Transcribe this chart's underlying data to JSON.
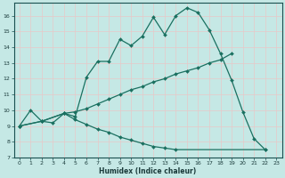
{
  "xlabel": "Humidex (Indice chaleur)",
  "background_color": "#c5e8e5",
  "grid_color": "#e8c8c8",
  "line_color": "#1a7060",
  "xlim": [
    -0.5,
    23.5
  ],
  "ylim": [
    7,
    16.8
  ],
  "xticks": [
    0,
    1,
    2,
    3,
    4,
    5,
    6,
    7,
    8,
    9,
    10,
    11,
    12,
    13,
    14,
    15,
    16,
    17,
    18,
    19,
    20,
    21,
    22,
    23
  ],
  "yticks": [
    7,
    8,
    9,
    10,
    11,
    12,
    13,
    14,
    15,
    16
  ],
  "series1_x": [
    0,
    1,
    2,
    3,
    4,
    5,
    6,
    7,
    8,
    9,
    10,
    11,
    12,
    13,
    14,
    15,
    16,
    17,
    18,
    19,
    20,
    21,
    22
  ],
  "series1_y": [
    9.0,
    10.0,
    9.3,
    9.2,
    9.8,
    9.6,
    12.1,
    13.1,
    13.1,
    14.5,
    14.1,
    14.7,
    15.9,
    14.8,
    16.0,
    16.5,
    16.2,
    15.1,
    13.6,
    11.9,
    9.9,
    8.2,
    7.5
  ],
  "series2_x": [
    0,
    2,
    4,
    5,
    6,
    7,
    8,
    9,
    10,
    11,
    12,
    13,
    14,
    15,
    16,
    17,
    18,
    19
  ],
  "series2_y": [
    9.0,
    9.3,
    9.8,
    9.9,
    10.1,
    10.4,
    10.7,
    11.0,
    11.3,
    11.5,
    11.8,
    12.0,
    12.3,
    12.5,
    12.7,
    13.0,
    13.2,
    13.6
  ],
  "series3_x": [
    0,
    2,
    4,
    5,
    6,
    7,
    8,
    9,
    10,
    11,
    12,
    13,
    14,
    22
  ],
  "series3_y": [
    9.0,
    9.3,
    9.8,
    9.4,
    9.1,
    8.8,
    8.6,
    8.3,
    8.1,
    7.9,
    7.7,
    7.6,
    7.5,
    7.5
  ]
}
